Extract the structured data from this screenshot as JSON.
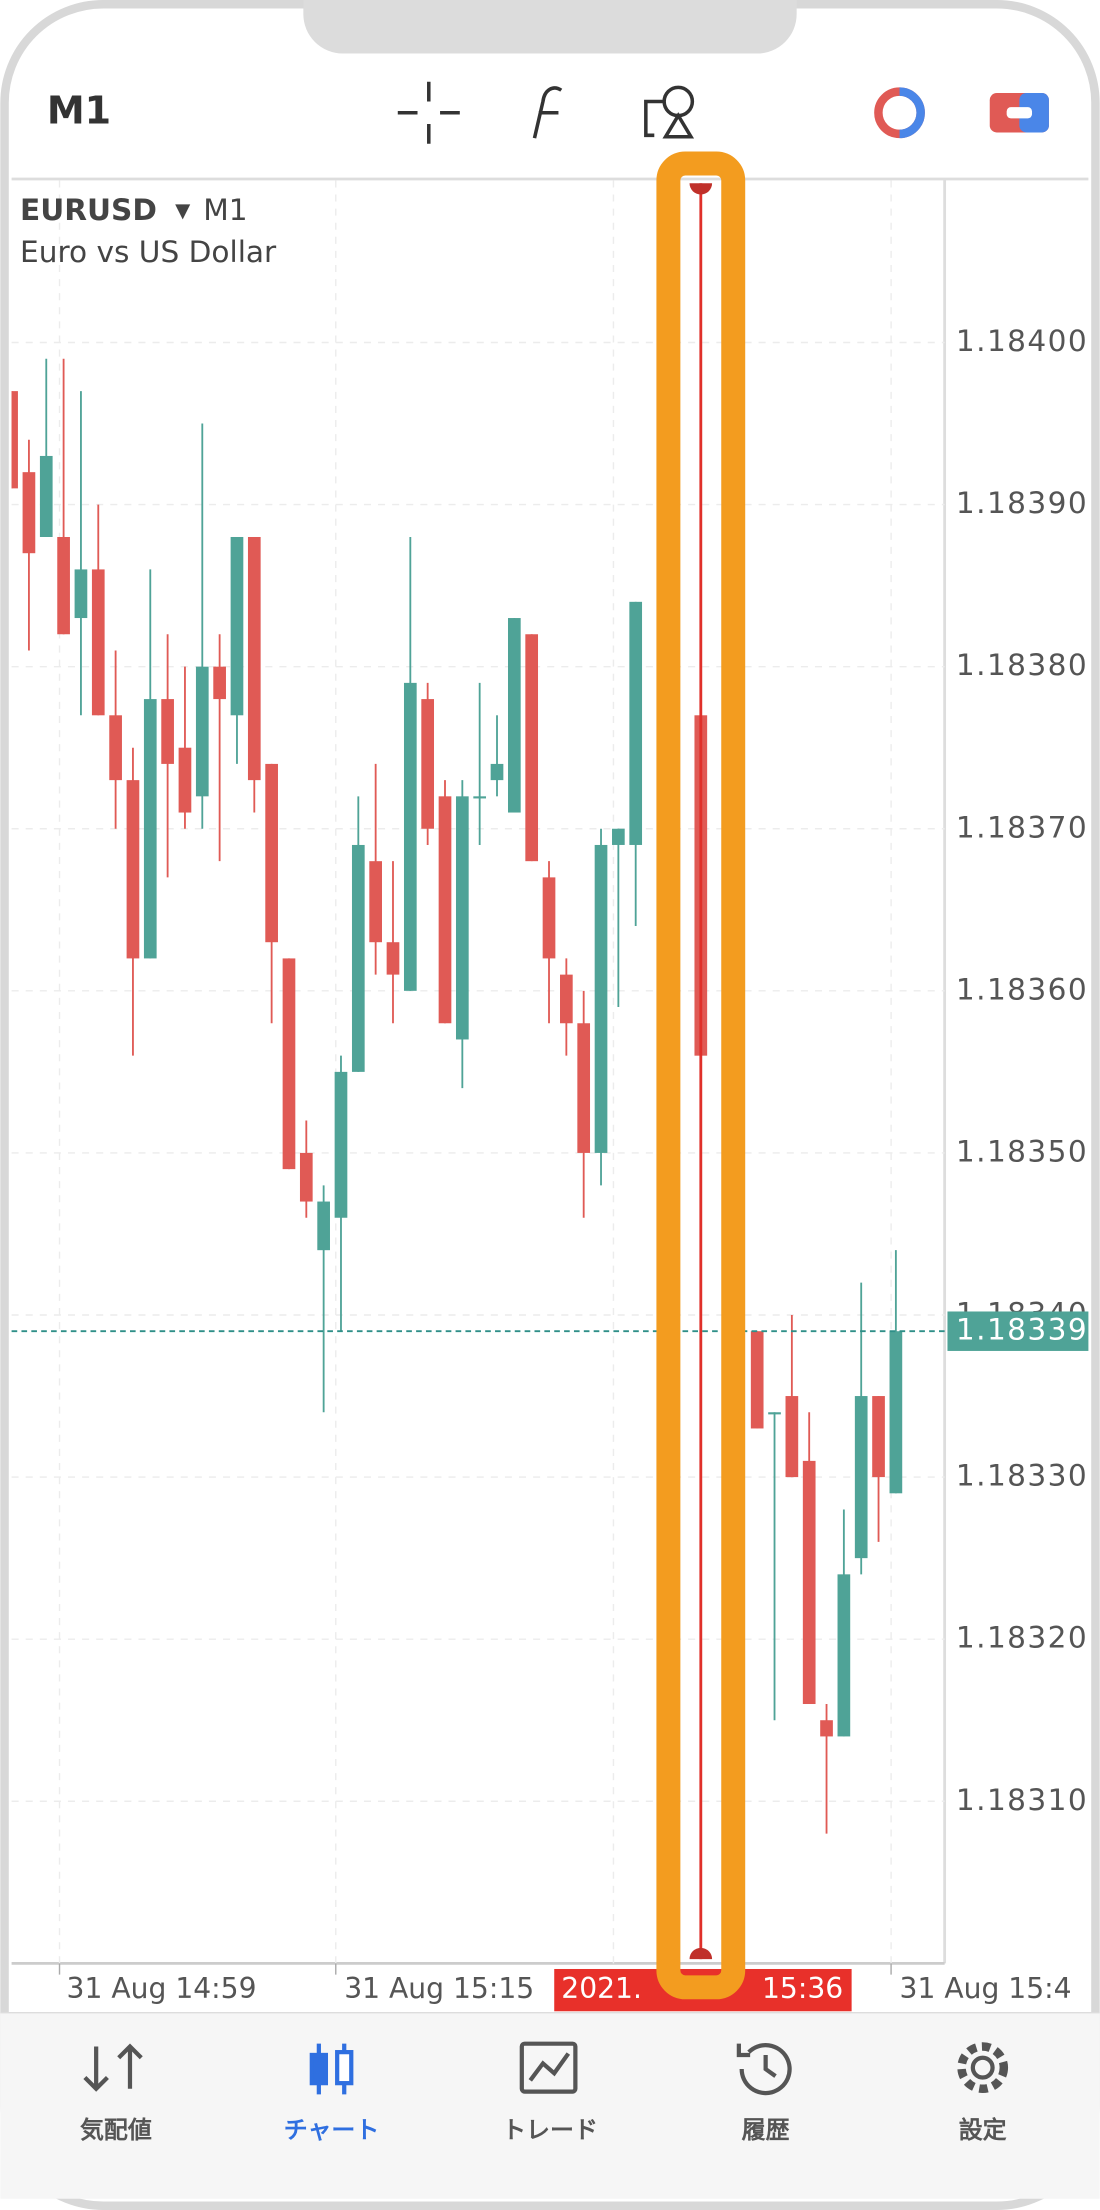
{
  "header": {
    "timeframe": "M1"
  },
  "chart_data": {
    "type": "candlestick",
    "symbol": "EURUSD",
    "timeframe": "M1",
    "description": "Euro vs US Dollar",
    "open": [
      1.18397,
      1.18392,
      1.18388,
      1.18388,
      1.18383,
      1.18386,
      1.18377,
      1.18373,
      1.18362,
      1.18378,
      1.18375,
      1.18372,
      1.1838,
      1.18377,
      1.18388,
      1.18374,
      1.18362,
      1.1835,
      1.18344,
      1.18346,
      1.18355,
      1.18368,
      1.18363,
      1.1836,
      1.18378,
      1.18372,
      1.18357,
      1.18372,
      1.18373,
      1.18371,
      1.18382,
      1.18367,
      1.18361,
      1.18358,
      1.1835,
      1.18369,
      1.18369,
      1.18377,
      1.18339,
      1.18334,
      1.18335,
      1.18331,
      1.18315,
      1.18314,
      1.18325,
      1.18335,
      1.18329
    ],
    "high": [
      1.18397,
      1.18394,
      1.18399,
      1.18399,
      1.18397,
      1.1839,
      1.18381,
      1.18375,
      1.18386,
      1.18382,
      1.1838,
      1.18395,
      1.18382,
      1.18388,
      1.18388,
      1.18374,
      1.18362,
      1.18352,
      1.18348,
      1.18356,
      1.18372,
      1.18374,
      1.18368,
      1.18388,
      1.18379,
      1.18373,
      1.18373,
      1.18379,
      1.18377,
      1.18383,
      1.18382,
      1.18368,
      1.18362,
      1.1836,
      1.1837,
      1.1837,
      1.18384,
      1.18379,
      1.18339,
      1.18334,
      1.1834,
      1.18334,
      1.18316,
      1.18328,
      1.18342,
      1.18335,
      1.18344
    ],
    "low": [
      1.18391,
      1.18381,
      1.18388,
      1.18382,
      1.18377,
      1.18377,
      1.1837,
      1.18356,
      1.18362,
      1.18367,
      1.1837,
      1.1837,
      1.18368,
      1.18374,
      1.18371,
      1.18358,
      1.18349,
      1.18346,
      1.18334,
      1.18339,
      1.18355,
      1.18361,
      1.18358,
      1.1836,
      1.18369,
      1.18358,
      1.18354,
      1.18369,
      1.18372,
      1.18371,
      1.18368,
      1.18358,
      1.18356,
      1.18346,
      1.18348,
      1.18359,
      1.18364,
      1.18356,
      1.18333,
      1.18315,
      1.1833,
      1.18316,
      1.18308,
      1.18314,
      1.18324,
      1.18326,
      1.18329
    ],
    "close": [
      1.18391,
      1.18387,
      1.18393,
      1.18382,
      1.18386,
      1.18377,
      1.18373,
      1.18362,
      1.18378,
      1.18374,
      1.18371,
      1.1838,
      1.18378,
      1.18388,
      1.18373,
      1.18363,
      1.18349,
      1.18347,
      1.18347,
      1.18355,
      1.18369,
      1.18363,
      1.18361,
      1.18379,
      1.1837,
      1.18358,
      1.18372,
      1.18372,
      1.18374,
      1.18383,
      1.18368,
      1.18362,
      1.18358,
      1.1835,
      1.18369,
      1.1837,
      1.18384,
      1.18356,
      1.18333,
      1.18334,
      1.1833,
      1.18316,
      1.18314,
      1.18324,
      1.18335,
      1.1833,
      1.18339
    ],
    "up_color": "#4fa397",
    "down_color": "#e05a55",
    "ylim": [
      1.183,
      1.1841
    ],
    "yticks": [
      {
        "value": 1.184,
        "label": "1.18400"
      },
      {
        "value": 1.1839,
        "label": "1.18390"
      },
      {
        "value": 1.1838,
        "label": "1.18380"
      },
      {
        "value": 1.1837,
        "label": "1.18370"
      },
      {
        "value": 1.1836,
        "label": "1.18360"
      },
      {
        "value": 1.1835,
        "label": "1.18350"
      },
      {
        "value": 1.1834,
        "label": "1.18340"
      },
      {
        "value": 1.1833,
        "label": "1.18330"
      },
      {
        "value": 1.1832,
        "label": "1.18320"
      },
      {
        "value": 1.1831,
        "label": "1.18310"
      }
    ],
    "grid": true,
    "x_labels": [
      "31 Aug 14:59",
      "31 Aug 15:15",
      "31 Aug 15:4"
    ],
    "cursor_label": [
      "2021.",
      "15:36"
    ],
    "last_price": 1.18339
  },
  "tabs": [
    {
      "label": "気配値",
      "active": false
    },
    {
      "label": "チャート",
      "active": true
    },
    {
      "label": "トレード",
      "active": false
    },
    {
      "label": "履歴",
      "active": false
    },
    {
      "label": "設定",
      "active": false
    }
  ]
}
